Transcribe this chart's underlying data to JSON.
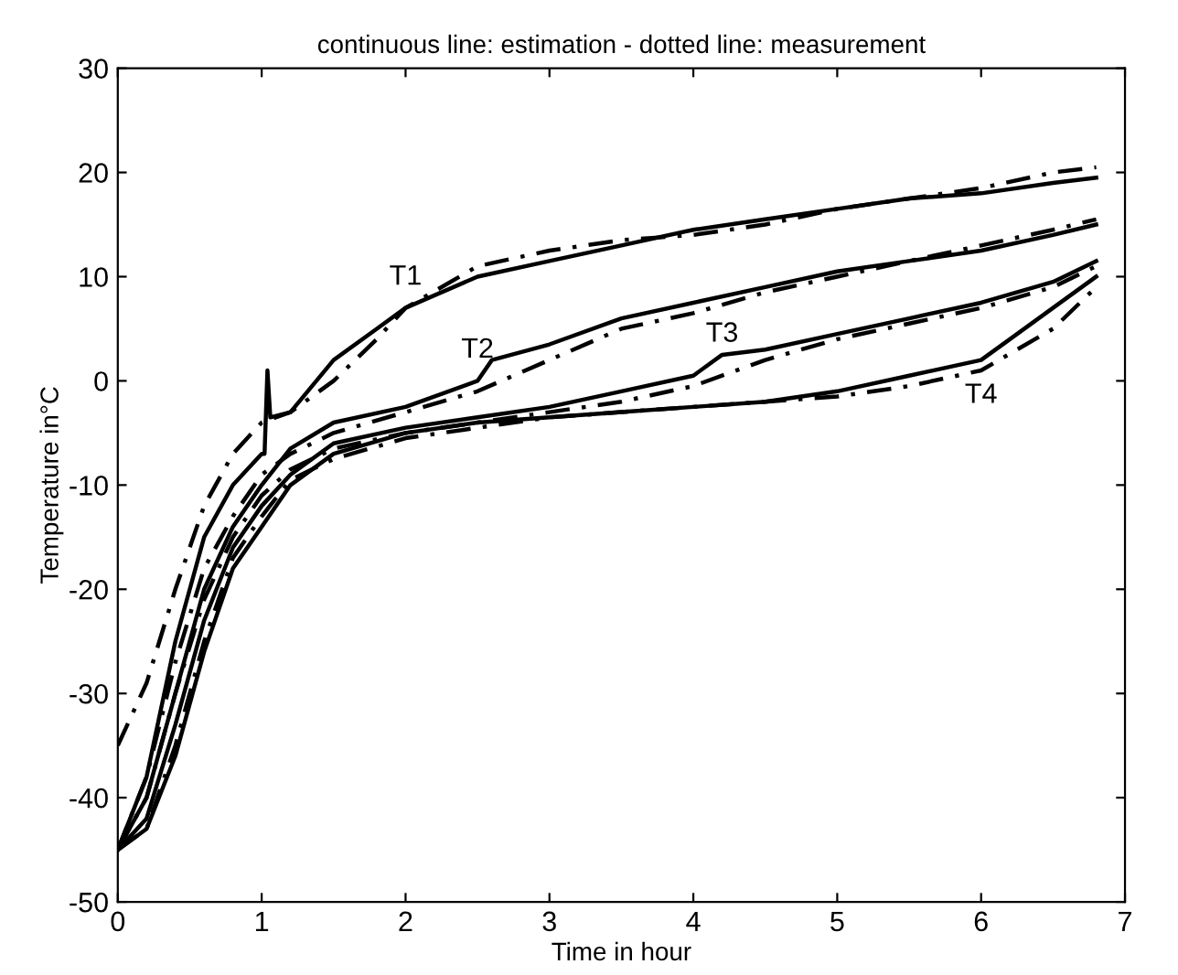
{
  "chart_data": {
    "type": "line",
    "title": "continuous line: estimation - dotted line: measurement",
    "xlabel": "Time in hour",
    "ylabel": "Temperature in°C",
    "xlim": [
      0,
      7
    ],
    "xticks": [
      0,
      1,
      2,
      3,
      4,
      5,
      6,
      7
    ],
    "ylim": [
      -50,
      30
    ],
    "yticks": [
      -50,
      -40,
      -30,
      -20,
      -10,
      0,
      10,
      20,
      30
    ],
    "grid": false,
    "legend": false,
    "marker": "none",
    "series": [
      {
        "name": "T1",
        "color": "#000000",
        "line_style": "solid",
        "x": [
          0,
          0.2,
          0.4,
          0.6,
          0.8,
          1.0,
          1.02,
          1.04,
          1.06,
          1.2,
          1.5,
          1.8,
          2,
          2.5,
          3,
          3.5,
          4,
          4.5,
          5,
          5.5,
          6,
          6.5,
          6.8
        ],
        "values": [
          -45,
          -38,
          -25,
          -15,
          -10,
          -7,
          -7,
          1,
          -3.5,
          -3,
          2,
          5,
          7,
          10,
          11.5,
          13,
          14.5,
          15.5,
          16.5,
          17.5,
          18,
          19,
          19.5
        ]
      },
      {
        "color": "#000000",
        "line_style": "dotted",
        "x": [
          0,
          0.2,
          0.4,
          0.6,
          0.8,
          1.0,
          1.2,
          1.5,
          1.8,
          2,
          2.5,
          3,
          3.5,
          4,
          4.5,
          5,
          5.5,
          6,
          6.5,
          6.8
        ],
        "values": [
          -35,
          -29,
          -20,
          -12,
          -7,
          -4,
          -3,
          0,
          4,
          7,
          11,
          12.5,
          13.5,
          14,
          15,
          16.5,
          17.5,
          18.5,
          20,
          20.5
        ]
      },
      {
        "name": "T2",
        "color": "#000000",
        "line_style": "solid",
        "x": [
          0,
          0.2,
          0.4,
          0.6,
          0.8,
          1.0,
          1.2,
          1.5,
          2,
          2.5,
          2.6,
          3,
          3.5,
          4,
          4.5,
          5,
          5.5,
          6,
          6.5,
          6.8
        ],
        "values": [
          -45,
          -40,
          -30,
          -20,
          -14,
          -10,
          -6.5,
          -4,
          -2.5,
          0,
          2,
          3.5,
          6,
          7.5,
          9,
          10.5,
          11.5,
          12.5,
          14,
          15
        ]
      },
      {
        "color": "#000000",
        "line_style": "dotted",
        "x": [
          0,
          0.2,
          0.4,
          0.6,
          0.8,
          1.0,
          1.2,
          1.5,
          2,
          2.5,
          3,
          3.5,
          4,
          4.5,
          5,
          5.5,
          6,
          6.5,
          6.8
        ],
        "values": [
          -45,
          -38,
          -27,
          -18,
          -13,
          -9,
          -7,
          -5,
          -3,
          -1,
          2,
          5,
          6.5,
          8.5,
          10,
          11.5,
          13,
          14.5,
          15.5
        ]
      },
      {
        "name": "T3",
        "color": "#000000",
        "line_style": "solid",
        "x": [
          0,
          0.2,
          0.4,
          0.6,
          0.8,
          1.0,
          1.2,
          1.5,
          2,
          2.5,
          3,
          3.5,
          4,
          4.2,
          4.5,
          5,
          5.5,
          6,
          6.5,
          6.8
        ],
        "values": [
          -45,
          -42,
          -33,
          -23,
          -16,
          -12,
          -9,
          -6,
          -4.5,
          -3.5,
          -2.5,
          -1,
          0.5,
          2.5,
          3,
          4.5,
          6,
          7.5,
          9.5,
          11.5
        ]
      },
      {
        "color": "#000000",
        "line_style": "dotted",
        "x": [
          0,
          0.2,
          0.4,
          0.6,
          0.8,
          1.0,
          1.2,
          1.5,
          2,
          2.5,
          3,
          3.5,
          4,
          4.5,
          5,
          5.5,
          6,
          6.5,
          6.8
        ],
        "values": [
          -45,
          -40,
          -30,
          -21,
          -15,
          -11,
          -8.5,
          -6.5,
          -5,
          -4,
          -3,
          -2,
          -0.5,
          2,
          4,
          5.5,
          7,
          9,
          11
        ]
      },
      {
        "name": "T4",
        "color": "#000000",
        "line_style": "solid",
        "x": [
          0,
          0.2,
          0.4,
          0.6,
          0.8,
          1.0,
          1.2,
          1.5,
          2,
          2.5,
          3,
          3.5,
          4,
          4.5,
          5,
          5.5,
          6,
          6.2,
          6.5,
          6.8
        ],
        "values": [
          -45,
          -43,
          -36,
          -26,
          -18,
          -14,
          -10,
          -7,
          -5,
          -4,
          -3.5,
          -3,
          -2.5,
          -2,
          -1,
          0.5,
          2,
          4,
          7,
          10
        ]
      },
      {
        "color": "#000000",
        "line_style": "dotted",
        "x": [
          0,
          0.2,
          0.4,
          0.6,
          0.8,
          1.0,
          1.2,
          1.5,
          2,
          2.5,
          3,
          3.5,
          4,
          4.5,
          5,
          5.5,
          6,
          6.5,
          6.8
        ],
        "values": [
          -45,
          -43,
          -35,
          -25,
          -17,
          -13,
          -9.5,
          -7.5,
          -5.5,
          -4.5,
          -3.5,
          -3,
          -2.5,
          -2,
          -1.5,
          -0.5,
          1,
          5,
          9
        ]
      }
    ]
  }
}
